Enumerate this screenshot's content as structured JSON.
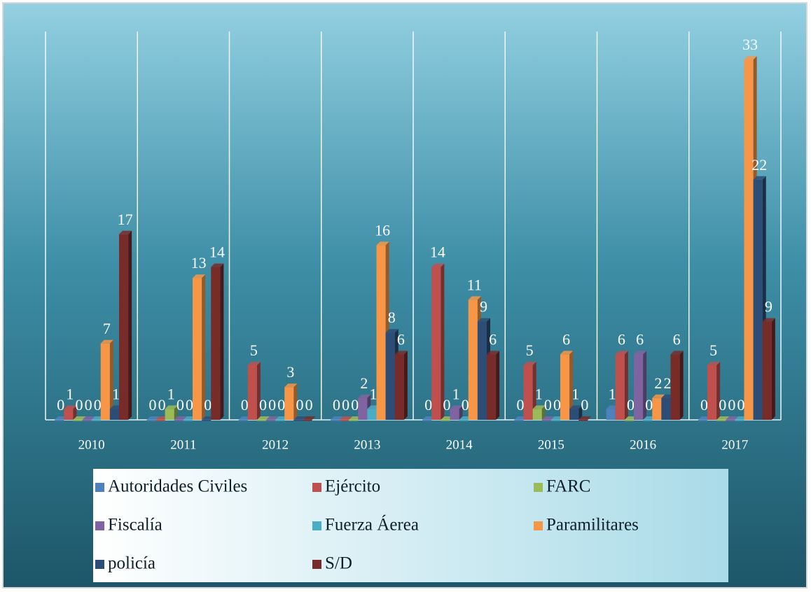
{
  "chart_data": {
    "type": "bar",
    "categories": [
      "2010",
      "2011",
      "2012",
      "2013",
      "2014",
      "2015",
      "2016",
      "2017"
    ],
    "series": [
      {
        "name": "Autoridades Civiles",
        "color": "#4f81bd",
        "values": [
          0,
          0,
          0,
          0,
          0,
          0,
          1,
          0
        ]
      },
      {
        "name": "Ejército",
        "color": "#c0504d",
        "values": [
          1,
          0,
          5,
          0,
          14,
          5,
          6,
          5
        ]
      },
      {
        "name": "FARC",
        "color": "#9bbb59",
        "values": [
          0,
          1,
          0,
          0,
          0,
          1,
          0,
          0
        ]
      },
      {
        "name": "Fiscalía",
        "color": "#8064a2",
        "values": [
          0,
          0,
          0,
          2,
          1,
          0,
          6,
          0
        ]
      },
      {
        "name": "Fuerza Áerea",
        "color": "#4bacc6",
        "values": [
          0,
          0,
          0,
          1,
          0,
          0,
          0,
          0
        ]
      },
      {
        "name": "Paramilitares",
        "color": "#f79646",
        "values": [
          7,
          13,
          3,
          16,
          11,
          6,
          2,
          33
        ]
      },
      {
        "name": "policía",
        "color": "#2c4d75",
        "values": [
          1,
          0,
          0,
          8,
          9,
          1,
          2,
          22
        ]
      },
      {
        "name": "S/D",
        "color": "#772c2a",
        "values": [
          17,
          14,
          0,
          6,
          6,
          0,
          6,
          9
        ]
      }
    ],
    "ylim": [
      0,
      35
    ]
  }
}
